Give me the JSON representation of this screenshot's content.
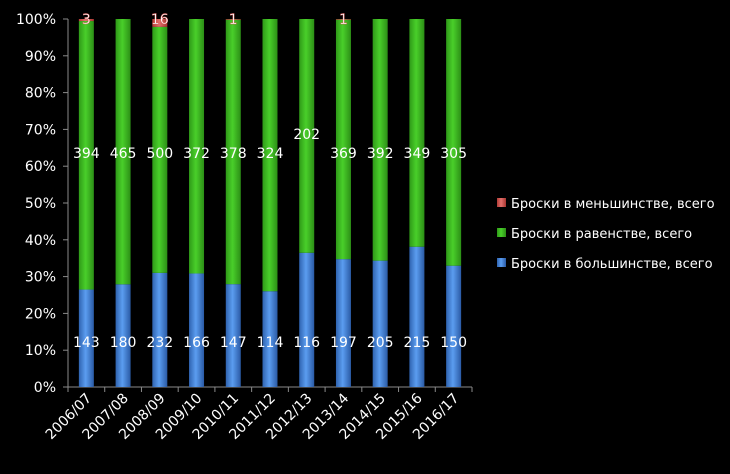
{
  "chart_data": {
    "type": "bar",
    "stacked": "percent",
    "categories": [
      "2006/07",
      "2007/08",
      "2008/09",
      "2009/10",
      "2010/11",
      "2011/12",
      "2012/13",
      "2013/14",
      "2014/15",
      "2015/16",
      "2016/17"
    ],
    "series": [
      {
        "name": "Броски в большинстве, всего",
        "color": "#3f7fd8",
        "values": [
          143,
          180,
          232,
          166,
          147,
          114,
          116,
          197,
          205,
          215,
          150
        ]
      },
      {
        "name": "Броски в равенстве, всего",
        "color": "#3dbb21",
        "values": [
          394,
          465,
          500,
          372,
          378,
          324,
          202,
          369,
          392,
          349,
          305
        ]
      },
      {
        "name": "Броски в меньшинстве, всего",
        "color": "#d9534f",
        "values": [
          3,
          0,
          16,
          0,
          1,
          0,
          0,
          1,
          0,
          0,
          0
        ]
      }
    ],
    "data_labels": {
      "Броски в большинстве, всего": [
        "143",
        "180",
        "232",
        "166",
        "147",
        "114",
        "116",
        "197",
        "205",
        "215",
        "150"
      ],
      "Броски в равенстве, всего": [
        "394",
        "465",
        "500",
        "372",
        "378",
        "324",
        "202",
        "369",
        "392",
        "349",
        "305"
      ],
      "Броски в меньшинстве, всего": [
        "3",
        "",
        "16",
        "",
        "1",
        "",
        "",
        "1",
        "",
        "",
        ""
      ]
    },
    "y_ticks": [
      "0%",
      "10%",
      "20%",
      "30%",
      "40%",
      "50%",
      "60%",
      "70%",
      "80%",
      "90%",
      "100%"
    ],
    "ylim": [
      0,
      100
    ],
    "legend_position": "right",
    "legend_order": [
      "Броски в меньшинстве, всего",
      "Броски в равенстве, всего",
      "Броски в большинстве, всего"
    ],
    "title": "",
    "xlabel": "",
    "ylabel": ""
  }
}
